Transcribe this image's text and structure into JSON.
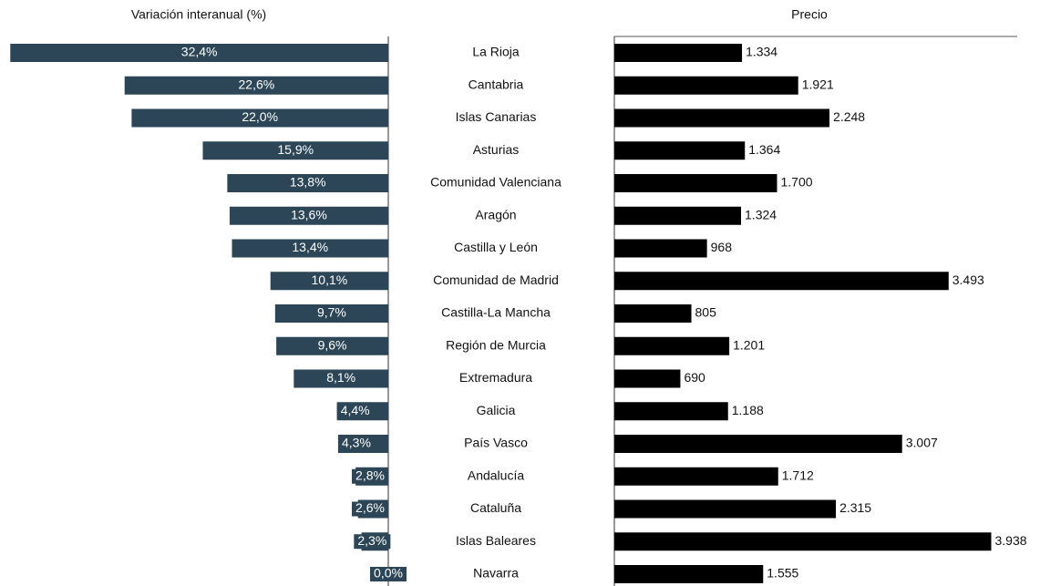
{
  "chart_data": [
    {
      "type": "bar",
      "title": "Variación interanual (%)",
      "color": "#2c4657",
      "categories": [
        "La Rioja",
        "Cantabria",
        "Islas Canarias",
        "Asturias",
        "Comunidad Valenciana",
        "Aragón",
        "Castilla y León",
        "Comunidad de Madrid",
        "Castilla-La Mancha",
        "Región de Murcia",
        "Extremadura",
        "Galicia",
        "País Vasco",
        "Andalucía",
        "Cataluña",
        "Islas Baleares",
        "Navarra"
      ],
      "values": [
        32.4,
        22.6,
        22.0,
        15.9,
        13.8,
        13.6,
        13.4,
        10.1,
        9.7,
        9.6,
        8.1,
        4.4,
        4.3,
        2.8,
        2.6,
        2.3,
        0.0
      ],
      "value_labels": [
        "32,4%",
        "22,6%",
        "22,0%",
        "15,9%",
        "13,8%",
        "13,6%",
        "13,4%",
        "10,1%",
        "9,7%",
        "9,6%",
        "8,1%",
        "4,4%",
        "4,3%",
        "2,8%",
        "2,6%",
        "2,3%",
        "0,0%"
      ]
    },
    {
      "type": "bar",
      "title": "Precio",
      "color": "#000000",
      "values": [
        1334,
        1921,
        2248,
        1364,
        1700,
        1324,
        968,
        3493,
        805,
        1201,
        690,
        1188,
        3007,
        1712,
        2315,
        3938,
        1555
      ],
      "value_labels": [
        "1.334",
        "1.921",
        "2.248",
        "1.364",
        "1.700",
        "1.324",
        "968",
        "3.493",
        "805",
        "1.201",
        "690",
        "1.188",
        "3.007",
        "1.712",
        "2.315",
        "3.938",
        "1.555"
      ]
    }
  ]
}
